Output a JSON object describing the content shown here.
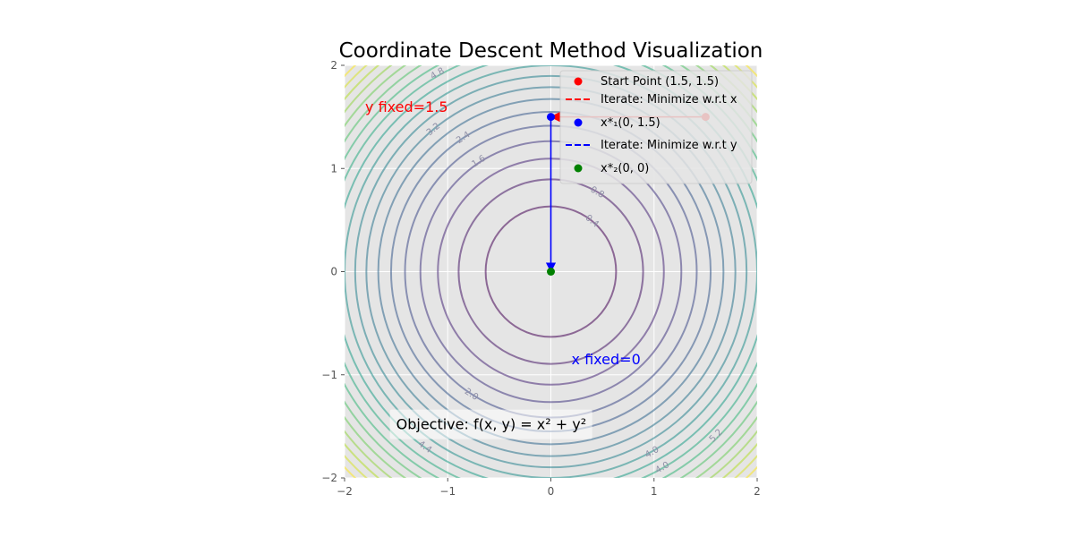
{
  "chart_data": {
    "type": "contour",
    "title": "Coordinate Descent Method Visualization",
    "xlabel": "",
    "ylabel": "",
    "xlim": [
      -2,
      2
    ],
    "ylim": [
      -2,
      2
    ],
    "xticks": [
      -2,
      -1,
      0,
      1,
      2
    ],
    "yticks": [
      -2,
      -1,
      0,
      1,
      2
    ],
    "xtick_labels": [
      "−2",
      "−1",
      "0",
      "1",
      "2"
    ],
    "ytick_labels": [
      "−2",
      "−1",
      "0",
      "1",
      "2"
    ],
    "grid": true,
    "contour_levels": [
      0.4,
      0.8,
      1.2,
      1.6,
      2.0,
      2.4,
      2.8,
      3.2,
      3.6,
      4.0,
      4.4,
      4.8,
      5.2,
      5.6,
      6.0,
      6.4,
      6.8,
      7.2,
      7.6
    ],
    "contour_labels": [
      {
        "text": "0.4",
        "x": 0.4,
        "y": 0.49
      },
      {
        "text": "0.8",
        "x": 0.45,
        "y": 0.77
      },
      {
        "text": "1.6",
        "x": -0.7,
        "y": 1.07
      },
      {
        "text": "2.4",
        "x": -0.85,
        "y": 1.3
      },
      {
        "text": "3.2",
        "x": -1.14,
        "y": 1.38
      },
      {
        "text": "2.0",
        "x": -0.77,
        "y": -1.19
      },
      {
        "text": "4.4",
        "x": -1.22,
        "y": -1.7
      },
      {
        "text": "4.0",
        "x": 0.98,
        "y": -1.75
      },
      {
        "text": "4.0",
        "x": 1.08,
        "y": -1.9
      },
      {
        "text": "5.2",
        "x": 1.6,
        "y": -1.59
      },
      {
        "text": "4.8",
        "x": -1.1,
        "y": 1.92
      }
    ],
    "points": [
      {
        "name": "start",
        "x": 1.5,
        "y": 1.5,
        "color": "#ff0000"
      },
      {
        "name": "x1",
        "x": 0,
        "y": 1.5,
        "color": "#0000ff"
      },
      {
        "name": "x2",
        "x": 0,
        "y": 0,
        "color": "#008000"
      }
    ],
    "arrows": [
      {
        "from": [
          1.5,
          1.5
        ],
        "to": [
          0,
          1.5
        ],
        "color": "#ff0000"
      },
      {
        "from": [
          0,
          1.5
        ],
        "to": [
          0,
          0
        ],
        "color": "#0000ff"
      }
    ],
    "legend": {
      "position": "top-right",
      "entries": [
        {
          "label": "Start Point (1.5, 1.5)",
          "marker": "dot",
          "color": "#ff0000"
        },
        {
          "label": "Iterate: Minimize w.r.t x",
          "marker": "dashed-line",
          "color": "#ff0000"
        },
        {
          "label": "x*₁(0, 1.5)",
          "marker": "dot",
          "color": "#0000ff"
        },
        {
          "label": "Iterate: Minimize w.r.t y",
          "marker": "dashed-line",
          "color": "#0000ff"
        },
        {
          "label": "x*₂(0, 0)",
          "marker": "dot",
          "color": "#008000"
        }
      ]
    },
    "annotations": [
      {
        "text": "y fixed=1.5",
        "x": -1.8,
        "y": 1.6,
        "color": "#ff0000"
      },
      {
        "text": "x fixed=0",
        "x": 0.2,
        "y": -0.95,
        "color": "#0000ff"
      },
      {
        "text": "Objective: f(x, y) = x² + y²",
        "x": -1.5,
        "y": -1.45,
        "color": "#000000"
      }
    ],
    "colors": {
      "plot_bg": "#e5e5e5",
      "grid": "#ffffff",
      "legend_bg": "#e5e5e5",
      "legend_border": "#cccccc",
      "tick": "#555555"
    }
  }
}
